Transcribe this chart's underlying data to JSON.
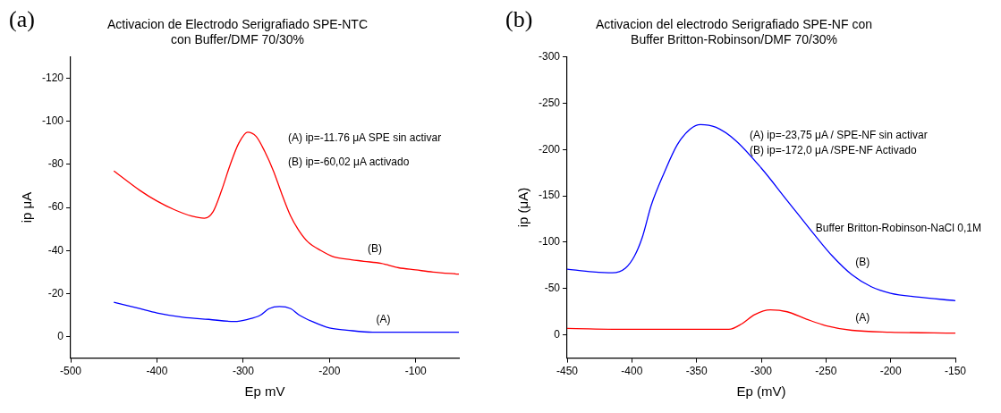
{
  "chart_data": [
    {
      "type": "line",
      "title": "Activacion de Electrodo Serigrafiado SPE-NTC\ncon Buffer/DMF 70/30%",
      "xlabel": "Ep mV",
      "ylabel": "ip μA",
      "xlim": [
        -500,
        -50
      ],
      "xticks": [
        -500,
        -400,
        -300,
        -200,
        -100
      ],
      "ylim": [
        10,
        -130
      ],
      "yticks": [
        -120,
        -100,
        -80,
        -60,
        -40,
        -20,
        0
      ],
      "grid": false,
      "legend": false,
      "marker": "none",
      "line_style": "solid",
      "annotations": [
        "(a)",
        "(A) ip=-11.76 μA SPE sin activar",
        "(B) ip=-60,02 μA activado"
      ],
      "series": [
        {
          "name": "(B)",
          "color": "#ff0000",
          "x": [
            -450,
            -420,
            -400,
            -380,
            -360,
            -345,
            -335,
            -325,
            -315,
            -305,
            -295,
            -285,
            -275,
            -265,
            -255,
            -245,
            -235,
            -225,
            -210,
            -195,
            -180,
            -160,
            -140,
            -120,
            -100,
            -80,
            -50
          ],
          "values": [
            -77,
            -68,
            -63,
            -59,
            -56,
            -55,
            -58,
            -68,
            -80,
            -90,
            -95,
            -93,
            -86,
            -77,
            -66,
            -56,
            -49,
            -44,
            -40,
            -37,
            -36,
            -35,
            -34,
            -32,
            -31,
            -30,
            -29
          ]
        },
        {
          "name": "(A)",
          "color": "#0000ff",
          "x": [
            -450,
            -420,
            -400,
            -370,
            -340,
            -310,
            -295,
            -280,
            -270,
            -258,
            -245,
            -235,
            -220,
            -200,
            -180,
            -150,
            -100,
            -50
          ],
          "values": [
            -16,
            -13,
            -11,
            -9,
            -8,
            -7,
            -8,
            -10,
            -13,
            -14,
            -13,
            -10,
            -7,
            -4,
            -3,
            -2,
            -2,
            -2
          ]
        }
      ]
    },
    {
      "type": "line",
      "title": "Activacion del electrodo Serigrafiado SPE-NF con\nBuffer Britton-Robinson/DMF 70/30%",
      "xlabel": "Ep (mV)",
      "ylabel": "ip (μA)",
      "xlim": [
        -450,
        -150
      ],
      "xticks": [
        -450,
        -400,
        -350,
        -300,
        -250,
        -200,
        -150
      ],
      "ylim": [
        25,
        -300
      ],
      "yticks": [
        -300,
        -250,
        -200,
        -150,
        -100,
        -50,
        0
      ],
      "grid": false,
      "legend": false,
      "marker": "none",
      "line_style": "solid",
      "annotations": [
        "(b)",
        "(A) ip=-23,75 μA / SPE-NF sin activar",
        "(B) ip=-172,0 μA /SPE-NF Activado",
        "Buffer Britton-Robinson-NaCl 0,1M"
      ],
      "series": [
        {
          "name": "(B)",
          "color": "#0000ff",
          "x": [
            -450,
            -430,
            -415,
            -405,
            -398,
            -392,
            -385,
            -375,
            -365,
            -355,
            -347,
            -335,
            -320,
            -300,
            -280,
            -260,
            -245,
            -230,
            -215,
            -200,
            -180,
            -150
          ],
          "values": [
            -71,
            -68,
            -67,
            -72,
            -85,
            -105,
            -140,
            -175,
            -205,
            -222,
            -227,
            -224,
            -210,
            -180,
            -145,
            -110,
            -85,
            -65,
            -52,
            -45,
            -41,
            -37
          ]
        },
        {
          "name": "(A)",
          "color": "#ff0000",
          "x": [
            -450,
            -400,
            -350,
            -325,
            -315,
            -305,
            -293,
            -280,
            -265,
            -250,
            -230,
            -200,
            -150
          ],
          "values": [
            -7,
            -6,
            -6,
            -6,
            -12,
            -22,
            -27,
            -25,
            -17,
            -10,
            -5,
            -3,
            -2
          ]
        }
      ]
    }
  ]
}
